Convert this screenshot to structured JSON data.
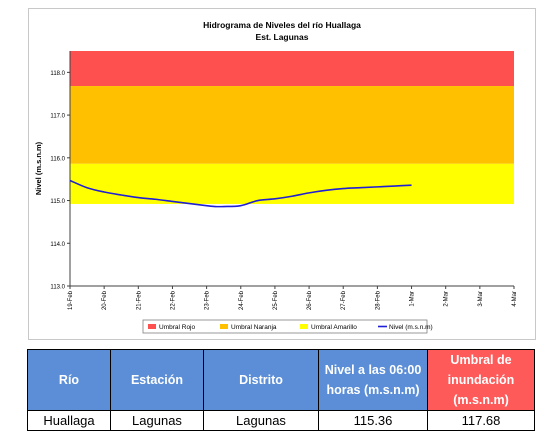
{
  "chart_data": {
    "type": "line",
    "title": "Hidrograma de Niveles del río Huallaga",
    "subtitle": "Est. Lagunas",
    "ylabel": "Nivel (m.s.n.m)",
    "ylim": [
      113.0,
      118.5
    ],
    "yticks": [
      "113.0",
      "114.0",
      "115.0",
      "116.0",
      "117.0",
      "118.0"
    ],
    "x_categories": [
      "19-Feb",
      "20-Feb",
      "21-Feb",
      "22-Feb",
      "23-Feb",
      "24-Feb",
      "25-Feb",
      "26-Feb",
      "27-Feb",
      "28-Feb",
      "1-Mar",
      "2-Mar",
      "3-Mar",
      "4-Mar"
    ],
    "grid": false,
    "legend_placement": "bottom",
    "thresholds": [
      {
        "name": "Umbral Rojo",
        "from": 117.68,
        "to": 118.5,
        "color": "#ff5050"
      },
      {
        "name": "Umbral Naranja",
        "from": 115.86,
        "to": 117.68,
        "color": "#ffc000"
      },
      {
        "name": "Umbral Amarillo",
        "from": 114.92,
        "to": 115.86,
        "color": "#ffff00"
      }
    ],
    "series": [
      {
        "name": "Nivel (m.s.n.m)",
        "color": "#1f1fd6",
        "x": [
          0,
          0.5,
          1,
          1.5,
          2,
          2.5,
          3,
          3.5,
          4,
          4.25,
          4.5,
          5,
          5.5,
          6,
          6.5,
          7,
          7.5,
          8,
          8.5,
          9,
          9.5,
          10
        ],
        "values": [
          115.47,
          115.3,
          115.2,
          115.13,
          115.07,
          115.03,
          114.98,
          114.93,
          114.88,
          114.86,
          114.86,
          114.88,
          115.0,
          115.04,
          115.1,
          115.18,
          115.24,
          115.28,
          115.3,
          115.32,
          115.34,
          115.36
        ]
      }
    ]
  },
  "table": {
    "headers": [
      "Río",
      "Estación",
      "Distrito",
      "Nivel a las 06:00 horas (m.s.n.m)",
      "Umbral de inundación (m.s.n.m)"
    ],
    "row": [
      "Huallaga",
      "Lagunas",
      "Lagunas",
      "115.36",
      "117.68"
    ]
  }
}
